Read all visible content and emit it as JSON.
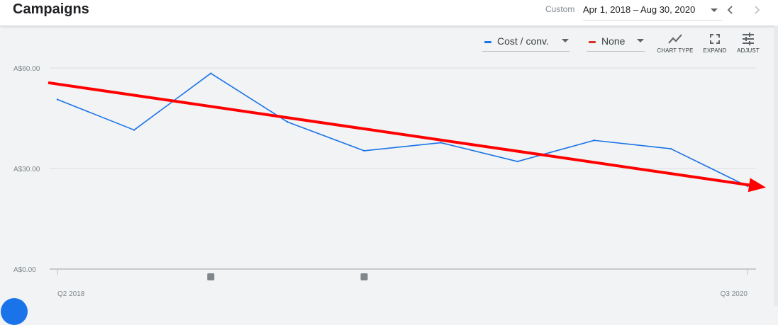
{
  "header": {
    "title": "Campaigns",
    "range_label": "Custom",
    "date_range": "Apr 1, 2018 – Aug 30, 2020",
    "icons": {
      "dropdown": "caret-down-icon",
      "prev": "chevron-left-icon",
      "next": "chevron-right-icon"
    }
  },
  "toolbar": {
    "metric1": {
      "label": "Cost / conv.",
      "color": "#1a73e8"
    },
    "metric2": {
      "label": "None",
      "color": "#d93025"
    },
    "chart_type_label": "CHART TYPE",
    "expand_label": "EXPAND",
    "adjust_label": "ADJUST",
    "icons": {
      "chart_type": "line-chart-icon",
      "expand": "fullscreen-icon",
      "adjust": "tune-icon"
    }
  },
  "chart_data": {
    "type": "line",
    "series": [
      {
        "name": "Cost / conv.",
        "color": "#1a73e8",
        "values": [
          50.6,
          41.5,
          58.4,
          43.9,
          35.3,
          37.7,
          32.1,
          38.4,
          35.9,
          24.7
        ]
      }
    ],
    "y_ticks": [
      "A$60.00",
      "A$30.00",
      "A$0.00"
    ],
    "ylim": [
      0,
      60
    ],
    "x_labels": [
      "Q2 2018",
      "Q3 2020"
    ],
    "grid": true,
    "event_markers": [
      2,
      4
    ],
    "annotation": {
      "type": "trend-arrow",
      "color": "#ff0000",
      "start": 55.6,
      "end": 24.9
    }
  }
}
